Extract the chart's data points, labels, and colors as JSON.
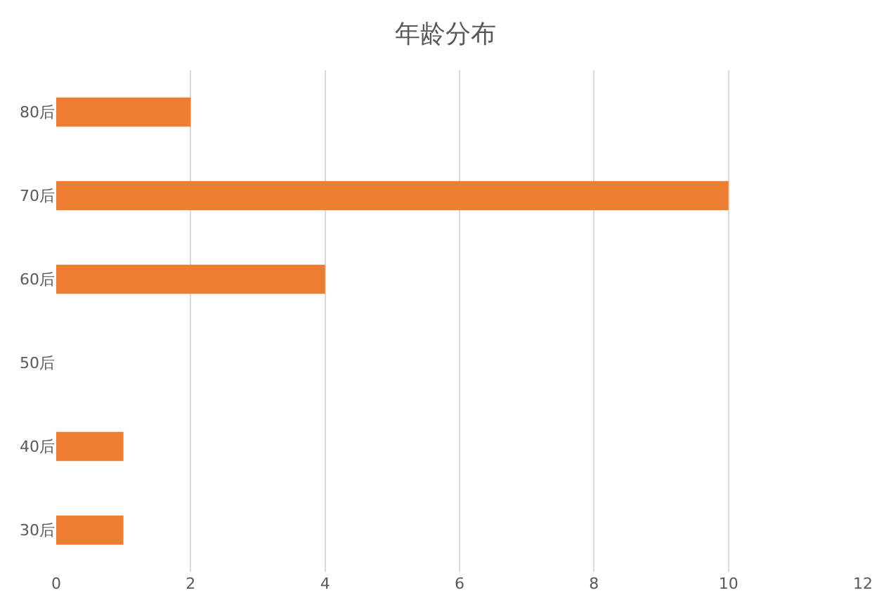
{
  "chart_data": {
    "type": "bar",
    "title": "年龄分布",
    "orientation": "horizontal",
    "categories": [
      "80后",
      "70后",
      "60后",
      "50后",
      "40后",
      "30后"
    ],
    "values": [
      2,
      10,
      4,
      0,
      1,
      1
    ],
    "color": "#ed7d31",
    "xlim": [
      0,
      12
    ],
    "xticks": [
      0,
      2,
      4,
      6,
      8,
      10,
      12
    ],
    "grid": "x"
  }
}
